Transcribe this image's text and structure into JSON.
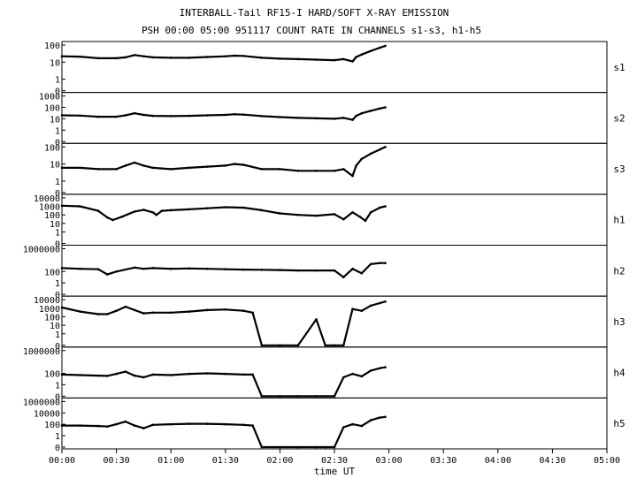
{
  "chart_data": {
    "type": "line",
    "title": "INTERBALL-Tail RF15-I HARD/SOFT X-RAY EMISSION",
    "subtitle": "PSH 00:00 05:00 951117  COUNT RATE IN CHANNELS s1-s3, h1-h5",
    "xlabel": "time UT",
    "x_ticks": [
      "00:00",
      "00:30",
      "01:00",
      "01:30",
      "02:00",
      "02:30",
      "03:00",
      "03:30",
      "04:00",
      "04:30",
      "05:00"
    ],
    "xlim": [
      "00:00",
      "05:00"
    ],
    "y_scale": "log",
    "grid": false,
    "panels": [
      {
        "name": "s1",
        "y_ticks": [
          "100",
          "10",
          "1",
          "0"
        ],
        "points": [
          [
            "00:00",
            22
          ],
          [
            "00:10",
            21
          ],
          [
            "00:20",
            17
          ],
          [
            "00:30",
            17
          ],
          [
            "00:35",
            19
          ],
          [
            "00:40",
            26
          ],
          [
            "00:45",
            22
          ],
          [
            "00:50",
            19
          ],
          [
            "01:00",
            18
          ],
          [
            "01:10",
            18
          ],
          [
            "01:20",
            20
          ],
          [
            "01:30",
            22
          ],
          [
            "01:35",
            24
          ],
          [
            "01:40",
            23
          ],
          [
            "01:50",
            18
          ],
          [
            "02:00",
            16
          ],
          [
            "02:10",
            15
          ],
          [
            "02:20",
            14
          ],
          [
            "02:30",
            13
          ],
          [
            "02:35",
            15
          ],
          [
            "02:40",
            11
          ],
          [
            "02:42",
            20
          ],
          [
            "02:45",
            28
          ],
          [
            "02:50",
            45
          ],
          [
            "02:55",
            70
          ],
          [
            "02:58",
            90
          ]
        ]
      },
      {
        "name": "s2",
        "y_ticks": [
          "1000",
          "100",
          "10",
          "1",
          "0"
        ],
        "points": [
          [
            "00:00",
            20
          ],
          [
            "00:10",
            19
          ],
          [
            "00:20",
            15
          ],
          [
            "00:30",
            15
          ],
          [
            "00:35",
            20
          ],
          [
            "00:40",
            30
          ],
          [
            "00:45",
            22
          ],
          [
            "00:50",
            18
          ],
          [
            "01:00",
            17
          ],
          [
            "01:10",
            18
          ],
          [
            "01:20",
            20
          ],
          [
            "01:30",
            22
          ],
          [
            "01:35",
            25
          ],
          [
            "01:40",
            23
          ],
          [
            "01:50",
            17
          ],
          [
            "02:00",
            14
          ],
          [
            "02:10",
            12
          ],
          [
            "02:20",
            11
          ],
          [
            "02:30",
            10
          ],
          [
            "02:35",
            12
          ],
          [
            "02:40",
            8
          ],
          [
            "02:42",
            18
          ],
          [
            "02:45",
            30
          ],
          [
            "02:50",
            50
          ],
          [
            "02:55",
            80
          ],
          [
            "02:58",
            100
          ]
        ]
      },
      {
        "name": "s3",
        "y_ticks": [
          "100",
          "10",
          "1",
          "0"
        ],
        "points": [
          [
            "00:00",
            6
          ],
          [
            "00:10",
            6
          ],
          [
            "00:20",
            5
          ],
          [
            "00:30",
            5
          ],
          [
            "00:35",
            8
          ],
          [
            "00:40",
            12
          ],
          [
            "00:45",
            8
          ],
          [
            "00:50",
            6
          ],
          [
            "01:00",
            5
          ],
          [
            "01:10",
            6
          ],
          [
            "01:20",
            7
          ],
          [
            "01:30",
            8
          ],
          [
            "01:35",
            10
          ],
          [
            "01:40",
            9
          ],
          [
            "01:50",
            5
          ],
          [
            "02:00",
            5
          ],
          [
            "02:10",
            4
          ],
          [
            "02:20",
            4
          ],
          [
            "02:30",
            4
          ],
          [
            "02:35",
            5
          ],
          [
            "02:40",
            2
          ],
          [
            "02:42",
            8
          ],
          [
            "02:45",
            20
          ],
          [
            "02:50",
            40
          ],
          [
            "02:55",
            70
          ],
          [
            "02:58",
            100
          ]
        ]
      },
      {
        "name": "h1",
        "y_ticks": [
          "10000",
          "1000",
          "100",
          "10",
          "1",
          "0"
        ],
        "points": [
          [
            "00:00",
            1200
          ],
          [
            "00:10",
            1000
          ],
          [
            "00:20",
            300
          ],
          [
            "00:25",
            50
          ],
          [
            "00:28",
            25
          ],
          [
            "00:33",
            60
          ],
          [
            "00:40",
            250
          ],
          [
            "00:45",
            400
          ],
          [
            "00:50",
            200
          ],
          [
            "00:52",
            100
          ],
          [
            "00:55",
            300
          ],
          [
            "01:00",
            350
          ],
          [
            "01:10",
            450
          ],
          [
            "01:20",
            600
          ],
          [
            "01:30",
            800
          ],
          [
            "01:40",
            700
          ],
          [
            "01:50",
            350
          ],
          [
            "02:00",
            150
          ],
          [
            "02:10",
            100
          ],
          [
            "02:20",
            80
          ],
          [
            "02:30",
            120
          ],
          [
            "02:35",
            30
          ],
          [
            "02:40",
            200
          ],
          [
            "02:44",
            60
          ],
          [
            "02:47",
            20
          ],
          [
            "02:50",
            200
          ],
          [
            "02:55",
            700
          ],
          [
            "02:58",
            1000
          ]
        ]
      },
      {
        "name": "h2",
        "y_ticks": [
          "1000000",
          "100",
          "1",
          "0"
        ],
        "points": [
          [
            "00:00",
            400
          ],
          [
            "00:10",
            300
          ],
          [
            "00:20",
            250
          ],
          [
            "00:25",
            30
          ],
          [
            "00:30",
            100
          ],
          [
            "00:40",
            500
          ],
          [
            "00:45",
            300
          ],
          [
            "00:50",
            400
          ],
          [
            "01:00",
            300
          ],
          [
            "01:10",
            350
          ],
          [
            "01:20",
            300
          ],
          [
            "01:30",
            250
          ],
          [
            "01:40",
            220
          ],
          [
            "01:50",
            200
          ],
          [
            "02:00",
            180
          ],
          [
            "02:10",
            150
          ],
          [
            "02:20",
            150
          ],
          [
            "02:30",
            150
          ],
          [
            "02:35",
            10
          ],
          [
            "02:40",
            300
          ],
          [
            "02:45",
            50
          ],
          [
            "02:50",
            2000
          ],
          [
            "02:55",
            3000
          ],
          [
            "02:58",
            3000
          ]
        ]
      },
      {
        "name": "h3",
        "y_ticks": [
          "10000",
          "1000",
          "100",
          "10",
          "1",
          "0"
        ],
        "points": [
          [
            "00:00",
            1200
          ],
          [
            "00:10",
            400
          ],
          [
            "00:20",
            200
          ],
          [
            "00:25",
            200
          ],
          [
            "00:30",
            500
          ],
          [
            "00:35",
            1500
          ],
          [
            "00:40",
            600
          ],
          [
            "00:45",
            250
          ],
          [
            "00:50",
            300
          ],
          [
            "01:00",
            300
          ],
          [
            "01:10",
            400
          ],
          [
            "01:20",
            600
          ],
          [
            "01:30",
            700
          ],
          [
            "01:40",
            500
          ],
          [
            "01:45",
            300
          ],
          [
            "01:50",
            0
          ],
          [
            "02:00",
            0
          ],
          [
            "02:10",
            0
          ],
          [
            "02:20",
            50
          ],
          [
            "02:25",
            0
          ],
          [
            "02:30",
            0
          ],
          [
            "02:35",
            0
          ],
          [
            "02:40",
            800
          ],
          [
            "02:45",
            500
          ],
          [
            "02:50",
            2000
          ],
          [
            "02:55",
            4000
          ],
          [
            "02:58",
            6000
          ]
        ]
      },
      {
        "name": "h4",
        "y_ticks": [
          "1000000",
          "100",
          "1",
          "0"
        ],
        "points": [
          [
            "00:00",
            60
          ],
          [
            "00:10",
            50
          ],
          [
            "00:20",
            40
          ],
          [
            "00:25",
            35
          ],
          [
            "00:30",
            80
          ],
          [
            "00:35",
            200
          ],
          [
            "00:40",
            40
          ],
          [
            "00:45",
            20
          ],
          [
            "00:50",
            60
          ],
          [
            "01:00",
            50
          ],
          [
            "01:10",
            80
          ],
          [
            "01:20",
            100
          ],
          [
            "01:30",
            80
          ],
          [
            "01:40",
            60
          ],
          [
            "01:45",
            60
          ],
          [
            "01:50",
            0
          ],
          [
            "02:00",
            0
          ],
          [
            "02:10",
            0
          ],
          [
            "02:20",
            0
          ],
          [
            "02:25",
            0
          ],
          [
            "02:30",
            0
          ],
          [
            "02:35",
            20
          ],
          [
            "02:40",
            80
          ],
          [
            "02:45",
            30
          ],
          [
            "02:50",
            300
          ],
          [
            "02:55",
            800
          ],
          [
            "02:58",
            1200
          ]
        ]
      },
      {
        "name": "h5",
        "y_ticks": [
          "1000000",
          "10000",
          "100",
          "1",
          "0"
        ],
        "points": [
          [
            "00:00",
            60
          ],
          [
            "00:10",
            60
          ],
          [
            "00:20",
            50
          ],
          [
            "00:25",
            40
          ],
          [
            "00:30",
            100
          ],
          [
            "00:35",
            300
          ],
          [
            "00:40",
            60
          ],
          [
            "00:45",
            20
          ],
          [
            "00:50",
            80
          ],
          [
            "01:00",
            100
          ],
          [
            "01:10",
            120
          ],
          [
            "01:20",
            120
          ],
          [
            "01:30",
            100
          ],
          [
            "01:40",
            80
          ],
          [
            "01:45",
            60
          ],
          [
            "01:50",
            0
          ],
          [
            "02:00",
            0
          ],
          [
            "02:10",
            0
          ],
          [
            "02:20",
            0
          ],
          [
            "02:25",
            0
          ],
          [
            "02:30",
            0
          ],
          [
            "02:35",
            30
          ],
          [
            "02:40",
            100
          ],
          [
            "02:45",
            50
          ],
          [
            "02:50",
            500
          ],
          [
            "02:55",
            1500
          ],
          [
            "02:58",
            2000
          ]
        ]
      }
    ]
  }
}
